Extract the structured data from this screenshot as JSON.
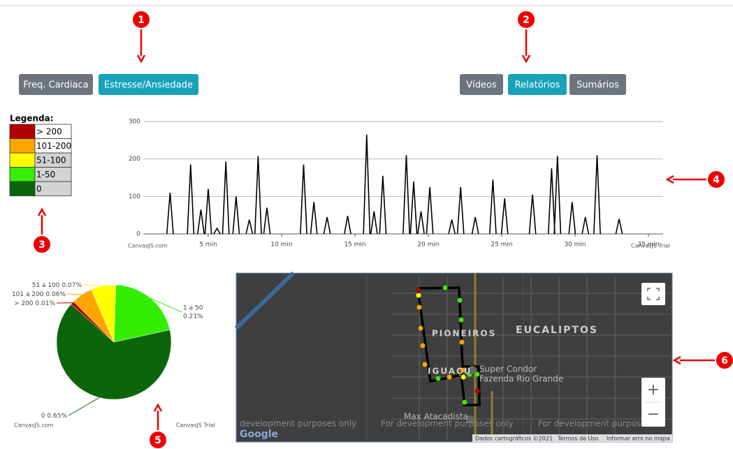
{
  "callouts": [
    "1",
    "2",
    "3",
    "4",
    "5",
    "6"
  ],
  "buttons_left": [
    "Freq. Cardiaca",
    "Estresse/Ansiedade"
  ],
  "buttons_right": [
    "Vídeos",
    "Relatórios",
    "Sumários"
  ],
  "legend": {
    "title": "Legenda:",
    "items": [
      {
        "label": "> 200",
        "color": "#b00000"
      },
      {
        "label": "101-200",
        "color": "#ffa500"
      },
      {
        "label": "51-100",
        "color": "#ffff00"
      },
      {
        "label": "1-50",
        "color": "#33ee00"
      },
      {
        "label": "0",
        "color": "#0b650b"
      }
    ]
  },
  "chart_data": [
    {
      "type": "line",
      "x": [
        2.4,
        3.8,
        4.5,
        5.0,
        5.6,
        6.2,
        6.9,
        7.8,
        8.4,
        9.0,
        11.5,
        12.2,
        13.1,
        14.5,
        15.8,
        16.3,
        16.9,
        18.5,
        19.0,
        19.5,
        20.1,
        21.6,
        22.2,
        23.2,
        24.4,
        25.2,
        27.1,
        28.4,
        28.8,
        29.8,
        30.7,
        31.5,
        33.0
      ],
      "values": [
        110,
        185,
        65,
        120,
        15,
        193,
        100,
        38,
        208,
        70,
        185,
        85,
        45,
        48,
        265,
        60,
        155,
        210,
        140,
        60,
        125,
        38,
        125,
        45,
        145,
        95,
        105,
        175,
        208,
        85,
        45,
        210,
        40
      ],
      "color": "#000000",
      "xlim": [
        0,
        36
      ],
      "ylim": [
        0,
        300
      ],
      "yticks": [
        0,
        100,
        200,
        300
      ],
      "xticks": [
        {
          "value": 5,
          "label": "5 min"
        },
        {
          "value": 10,
          "label": "10 min"
        },
        {
          "value": 15,
          "label": "15 min"
        },
        {
          "value": 20,
          "label": "20 min"
        },
        {
          "value": 25,
          "label": "25 min"
        },
        {
          "value": 30,
          "label": "30 min"
        },
        {
          "value": 35,
          "label": "35 min"
        }
      ],
      "grid": true,
      "credit": "CanvasJS.com",
      "watermark": "CanvasJS Trial"
    },
    {
      "type": "pie",
      "categories": [
        "1 a 50",
        "0",
        "> 200",
        "101 a 200",
        "51 a 100"
      ],
      "values": [
        0.21,
        0.65,
        0.01,
        0.06,
        0.07
      ],
      "value_labels": [
        "0.21%",
        "0.65%",
        "0.01%",
        "0.06%",
        "0.07%"
      ],
      "colors": [
        "#33ee00",
        "#0b650b",
        "#b00000",
        "#ffa500",
        "#ffff00"
      ],
      "credit": "CanvasJS.com",
      "watermark": "CanvasJS Trial"
    }
  ],
  "map": {
    "labels": [
      "PIONEIROS",
      "EUCALIPTOS",
      "IGUAÇU",
      "Super Condor",
      "Fazenda Rio Grande",
      "Max Atacadista"
    ],
    "watermarks": [
      "development purposes only",
      "For development purposes only",
      "For development purpose"
    ],
    "logo": "Google",
    "footer": [
      "Dados cartográficos ©2021",
      "Termos de Uso",
      "Informar erro no mapa"
    ],
    "zoom_in": "+",
    "zoom_out": "−"
  }
}
